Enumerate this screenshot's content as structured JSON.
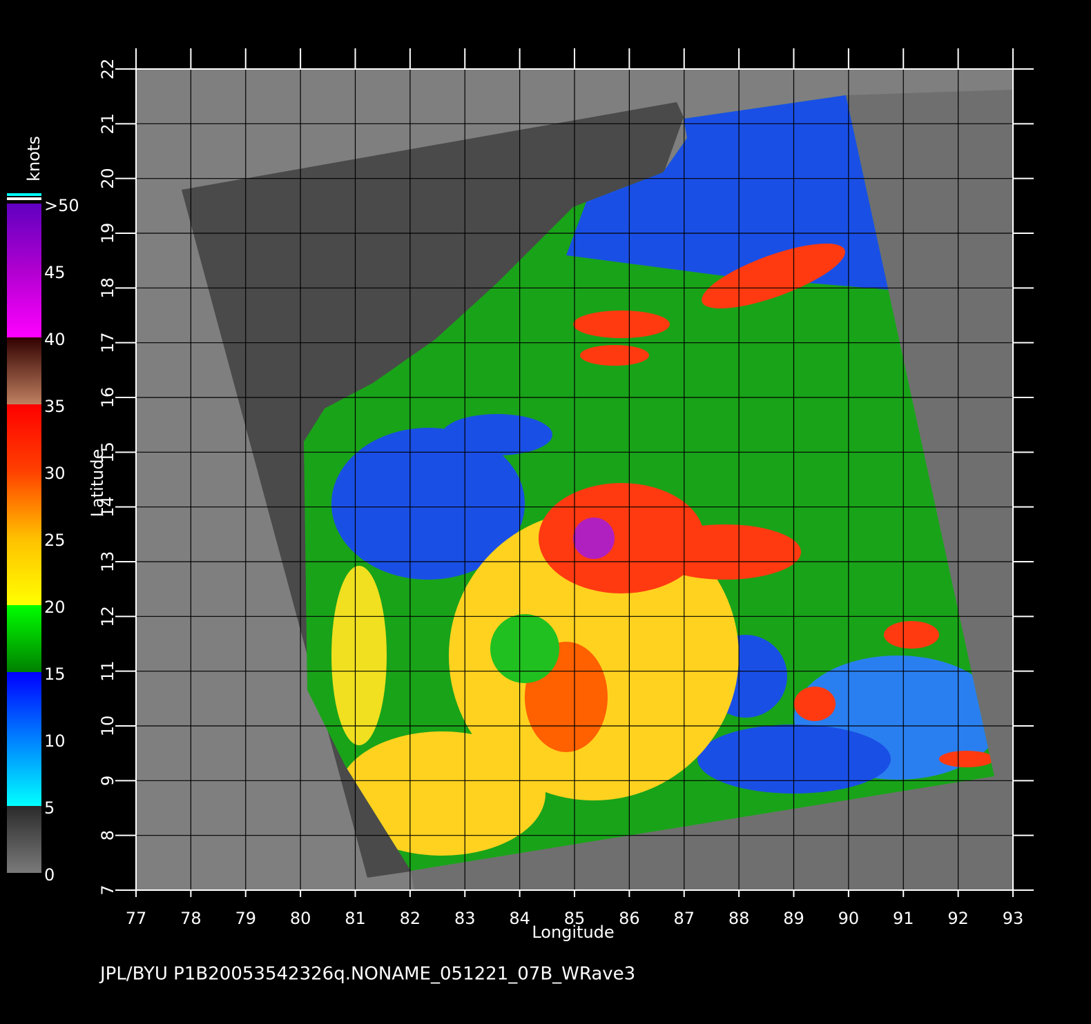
{
  "map": {
    "x_label": "Longitude",
    "y_label": "Latitude",
    "xlim": [
      77,
      93
    ],
    "ylim": [
      7,
      22
    ],
    "xticks": [
      77,
      78,
      79,
      80,
      81,
      82,
      83,
      84,
      85,
      86,
      87,
      88,
      89,
      90,
      91,
      92,
      93
    ],
    "yticks": [
      7,
      8,
      9,
      10,
      11,
      12,
      13,
      14,
      15,
      16,
      17,
      18,
      19,
      20,
      21,
      22
    ]
  },
  "colorbar": {
    "unit": "knots",
    "range": [
      0,
      50
    ],
    "ticks": [
      0,
      5,
      10,
      15,
      20,
      25,
      30,
      35,
      40,
      45,
      {
        "value": 50,
        "label": ">50"
      }
    ]
  },
  "footer": "JPL/BYU  P1B20053542326q.NONAME_051221_07B_WRave3"
}
